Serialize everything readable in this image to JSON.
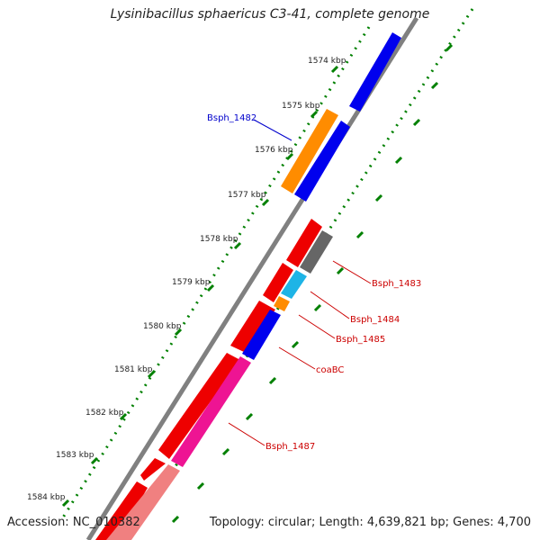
{
  "title": "Lysinibacillus sphaericus C3-41, complete genome",
  "footer": {
    "accession": "Accession: NC_010382",
    "summary": "Topology: circular; Length: 4,639,821 bp; Genes: 4,700"
  },
  "ticks": [
    "1574 kbp",
    "1575 kbp",
    "1576 kbp",
    "1577 kbp",
    "1578 kbp",
    "1579 kbp",
    "1580 kbp",
    "1581 kbp",
    "1582 kbp",
    "1583 kbp",
    "1584 kbp"
  ],
  "gene_labels": [
    {
      "text": "Bsph_1482",
      "color": "#0000cc"
    },
    {
      "text": "Bsph_1483",
      "color": "#cc0000"
    },
    {
      "text": "Bsph_1484",
      "color": "#cc0000"
    },
    {
      "text": "Bsph_1485",
      "color": "#cc0000"
    },
    {
      "text": "coaBC",
      "color": "#cc0000"
    },
    {
      "text": "Bsph_1487",
      "color": "#cc0000"
    }
  ],
  "colors": {
    "backbone": "#808080",
    "forward_cds": "#0000ee",
    "reverse_cds": "#ee0000",
    "tick_dots": "#008000",
    "orange_feature": "#ff8c00",
    "gray_feature": "#666666",
    "cyan_feature": "#1eb4e6",
    "magenta_feature": "#ee1493",
    "salmon_feature": "#f08080"
  }
}
